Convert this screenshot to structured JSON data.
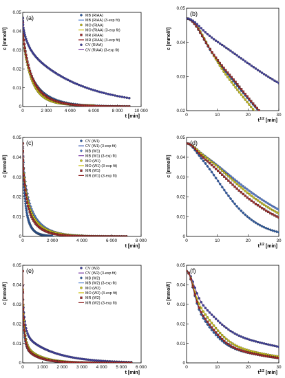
{
  "chart_data": [
    {
      "id": "a",
      "type": "scatter",
      "panel_label": "(a)",
      "xlabel": "t [min]",
      "ylabel": "c [mmol/l]",
      "xlim": [
        0,
        10000
      ],
      "ylim": [
        0,
        0.05
      ],
      "xticks": [
        0,
        2000,
        4000,
        6000,
        8000,
        10000
      ],
      "xtick_labels": [
        "0",
        "2 000",
        "4 000",
        "6 000",
        "8 000",
        "10 000"
      ],
      "yticks": [
        0,
        0.01,
        0.02,
        0.03,
        0.04,
        0.05
      ],
      "ytick_labels": [
        "0",
        "0.01",
        "0.02",
        "0.03",
        "0.04",
        "0.05"
      ],
      "legend_position": "top-right",
      "series": [
        {
          "name": "MB (RIAA)",
          "fit_name": "MB (RIAA) (3-exp fit)",
          "marker": "diamond",
          "color": "#2c5aa0",
          "fit_color": "#4f7fd0",
          "x_max": 9000,
          "c0": 0.047,
          "amps": [
            0.008,
            0.016,
            0.023
          ],
          "taus": [
            40,
            400,
            1500
          ]
        },
        {
          "name": "MO (RIAA)",
          "fit_name": "MO (RIAA) (3-exp fit)",
          "marker": "circle",
          "color": "#c9c21a",
          "fit_color": "#c8bb00",
          "x_max": 6000,
          "c0": 0.047,
          "amps": [
            0.01,
            0.022,
            0.0145
          ],
          "taus": [
            60,
            600,
            1200
          ]
        },
        {
          "name": "MR (RIAA)",
          "fit_name": "MR (RIAA) (3-exp fit)",
          "marker": "square",
          "color": "#a52a2a",
          "fit_color": "#8b1a1a",
          "x_max": 9000,
          "c0": 0.047,
          "amps": [
            0.008,
            0.018,
            0.021
          ],
          "taus": [
            40,
            500,
            1400
          ]
        },
        {
          "name": "CV (RIAA)",
          "fit_name": "CV (RIAA) (3-exp fit)",
          "marker": "circle",
          "color": "#3f3f9f",
          "fit_color": "#7030a0",
          "x_max": 9000,
          "c0": 0.047,
          "amps": [
            0.004,
            0.01,
            0.033
          ],
          "taus": [
            30,
            400,
            4500
          ]
        }
      ]
    },
    {
      "id": "b",
      "type": "scatter",
      "panel_label": "(b)",
      "xlabel": "t^1/2 [min]",
      "ylabel": "c [mmol/l]",
      "xlim": [
        0,
        30
      ],
      "ylim": [
        0.02,
        0.05
      ],
      "xticks": [
        0,
        10,
        20,
        30
      ],
      "xtick_labels": [
        "0",
        "10",
        "20",
        "30"
      ],
      "yticks": [
        0.02,
        0.03,
        0.04,
        0.05
      ],
      "ytick_labels": [
        "0.02",
        "0.03",
        "0.04",
        "0.05"
      ],
      "series": [
        {
          "name": "MB (RIAA)",
          "marker": "diamond",
          "color": "#2c5aa0",
          "fit_color": "#4f7fd0",
          "x_max": 28,
          "c0": 0.047,
          "amps": [
            0.008,
            0.016,
            0.023
          ],
          "taus": [
            40,
            400,
            1500
          ]
        },
        {
          "name": "MO (RIAA)",
          "marker": "circle",
          "color": "#c9c21a",
          "fit_color": "#c8bb00",
          "x_max": 28,
          "c0": 0.047,
          "amps": [
            0.01,
            0.022,
            0.0145
          ],
          "taus": [
            60,
            600,
            1200
          ]
        },
        {
          "name": "MR (RIAA)",
          "marker": "square",
          "color": "#a52a2a",
          "fit_color": "#8b1a1a",
          "x_max": 28,
          "c0": 0.047,
          "amps": [
            0.008,
            0.018,
            0.021
          ],
          "taus": [
            40,
            500,
            1400
          ]
        },
        {
          "name": "CV (RIAA)",
          "marker": "circle",
          "color": "#3f3f9f",
          "fit_color": "#7030a0",
          "x_max": 30,
          "c0": 0.047,
          "amps": [
            0.004,
            0.01,
            0.033
          ],
          "taus": [
            30,
            400,
            4500
          ]
        }
      ]
    },
    {
      "id": "c",
      "type": "scatter",
      "panel_label": "(c)",
      "xlabel": "t [min]",
      "ylabel": "c [mmol/l]",
      "xlim": [
        0,
        8000
      ],
      "ylim": [
        0,
        0.05
      ],
      "xticks": [
        0,
        2000,
        4000,
        6000,
        8000
      ],
      "xtick_labels": [
        "0",
        "2 000",
        "4 000",
        "6 000",
        "8 000"
      ],
      "yticks": [
        0,
        0.01,
        0.02,
        0.03,
        0.04,
        0.05
      ],
      "ytick_labels": [
        "0",
        "0.01",
        "0.02",
        "0.03",
        "0.04",
        "0.05"
      ],
      "legend_position": "top-right",
      "series": [
        {
          "name": "CV (W1)",
          "fit_name": "CV (W1) (3-exp fit)",
          "marker": "diamond",
          "color": "#2c5aa0",
          "fit_color": "#3050b0",
          "x_max": 2000,
          "c0": 0.047,
          "amps": [
            0.01,
            0.02,
            0.017
          ],
          "taus": [
            15,
            150,
            420
          ]
        },
        {
          "name": "MB (W1)",
          "fit_name": "MB (W1) (3-exp fit)",
          "marker": "diamond",
          "color": "#4f7fd0",
          "fit_color": "#7030a0",
          "x_max": 7000,
          "c0": 0.047,
          "amps": [
            0.007,
            0.016,
            0.024
          ],
          "taus": [
            25,
            250,
            900
          ]
        },
        {
          "name": "MO (W1)",
          "fit_name": "MO (W1) (3-exp fit)",
          "marker": "circle",
          "color": "#c9c21a",
          "fit_color": "#c8bb00",
          "x_max": 7000,
          "c0": 0.047,
          "amps": [
            0.01,
            0.02,
            0.017
          ],
          "taus": [
            20,
            300,
            1000
          ]
        },
        {
          "name": "MR (W1)",
          "fit_name": "MR (W1) (3-exp fit)",
          "marker": "square",
          "color": "#a52a2a",
          "fit_color": "#8b1a1a",
          "x_max": 7000,
          "c0": 0.047,
          "amps": [
            0.009,
            0.02,
            0.018
          ],
          "taus": [
            20,
            220,
            800
          ]
        }
      ]
    },
    {
      "id": "d",
      "type": "scatter",
      "panel_label": "(d)",
      "xlabel": "t^1/2 [min]",
      "ylabel": "c [mmol/l]",
      "xlim": [
        0,
        30
      ],
      "ylim": [
        0,
        0.05
      ],
      "xticks": [
        0,
        10,
        20,
        30
      ],
      "xtick_labels": [
        "0",
        "10",
        "20",
        "30"
      ],
      "yticks": [
        0,
        0.01,
        0.02,
        0.03,
        0.04,
        0.05
      ],
      "ytick_labels": [
        "0",
        "0.01",
        "0.02",
        "0.03",
        "0.04",
        "0.05"
      ],
      "series": [
        {
          "name": "CV (W1)",
          "marker": "diamond",
          "color": "#2c5aa0",
          "fit_color": "#3050b0",
          "x_max": 30,
          "c0": 0.047,
          "amps": [
            0.004,
            0.016,
            0.027
          ],
          "taus": [
            10,
            150,
            350
          ]
        },
        {
          "name": "MB (W1)",
          "marker": "diamond",
          "color": "#4f7fd0",
          "fit_color": "#7030a0",
          "x_max": 30,
          "c0": 0.047,
          "amps": [
            0.004,
            0.01,
            0.033
          ],
          "taus": [
            15,
            200,
            1000
          ]
        },
        {
          "name": "MO (W1)",
          "marker": "circle",
          "color": "#c9c21a",
          "fit_color": "#c8bb00",
          "x_max": 30,
          "c0": 0.047,
          "amps": [
            0.004,
            0.012,
            0.031
          ],
          "taus": [
            15,
            220,
            900
          ]
        },
        {
          "name": "MR (W1)",
          "marker": "square",
          "color": "#a52a2a",
          "fit_color": "#8b1a1a",
          "x_max": 30,
          "c0": 0.047,
          "amps": [
            0.005,
            0.013,
            0.029
          ],
          "taus": [
            15,
            200,
            800
          ]
        }
      ]
    },
    {
      "id": "e",
      "type": "scatter",
      "panel_label": "(e)",
      "xlabel": "t [min]",
      "ylabel": "c [mmol/l]",
      "xlim": [
        0,
        6000
      ],
      "ylim": [
        0,
        0.05
      ],
      "xticks": [
        0,
        1000,
        2000,
        3000,
        4000,
        5000,
        6000
      ],
      "xtick_labels": [
        "0",
        "1 000",
        "2 000",
        "3 000",
        "4 000",
        "5 000",
        "6 000"
      ],
      "yticks": [
        0,
        0.01,
        0.02,
        0.03,
        0.04,
        0.05
      ],
      "ytick_labels": [
        "0",
        "0.01",
        "0.02",
        "0.03",
        "0.04",
        "0.05"
      ],
      "legend_position": "top-right",
      "series": [
        {
          "name": "CV (W2)",
          "fit_name": "CV (W2) (3-exp fit)",
          "marker": "circle",
          "color": "#3f3f9f",
          "fit_color": "#7030a0",
          "x_max": 5500,
          "c0": 0.047,
          "amps": [
            0.014,
            0.018,
            0.015
          ],
          "taus": [
            10,
            120,
            1500
          ]
        },
        {
          "name": "MB (W2)",
          "fit_name": "MB (W2) (3-exp fit)",
          "marker": "diamond",
          "color": "#2c5aa0",
          "fit_color": "#4f7fd0",
          "x_max": 5500,
          "c0": 0.047,
          "amps": [
            0.018,
            0.02,
            0.009
          ],
          "taus": [
            8,
            80,
            700
          ]
        },
        {
          "name": "MO (W2)",
          "fit_name": "MO (W2) (3-exp fit)",
          "marker": "circle",
          "color": "#c9c21a",
          "fit_color": "#c8bb00",
          "x_max": 5500,
          "c0": 0.047,
          "amps": [
            0.015,
            0.022,
            0.01
          ],
          "taus": [
            8,
            100,
            800
          ]
        },
        {
          "name": "MR (W2)",
          "fit_name": "MR (W2) (3-exp fit)",
          "marker": "square",
          "color": "#a52a2a",
          "fit_color": "#8b1a1a",
          "x_max": 5500,
          "c0": 0.047,
          "amps": [
            0.017,
            0.021,
            0.009
          ],
          "taus": [
            8,
            90,
            700
          ]
        }
      ]
    },
    {
      "id": "f",
      "type": "scatter",
      "panel_label": "(f)",
      "xlabel": "t^1/2 [min]",
      "ylabel": "c [mmol/l]",
      "xlim": [
        0,
        30
      ],
      "ylim": [
        0,
        0.05
      ],
      "xticks": [
        0,
        10,
        20,
        30
      ],
      "xtick_labels": [
        "0",
        "10",
        "20",
        "30"
      ],
      "yticks": [
        0,
        0.01,
        0.02,
        0.03,
        0.04,
        0.05
      ],
      "ytick_labels": [
        "0",
        "0.01",
        "0.02",
        "0.03",
        "0.04",
        "0.05"
      ],
      "series": [
        {
          "name": "CV (W2)",
          "marker": "circle",
          "color": "#3f3f9f",
          "fit_color": "#7030a0",
          "x_max": 30,
          "c0": 0.047,
          "amps": [
            0.014,
            0.018,
            0.015
          ],
          "taus": [
            10,
            120,
            1500
          ]
        },
        {
          "name": "MB (W2)",
          "marker": "diamond",
          "color": "#2c5aa0",
          "fit_color": "#4f7fd0",
          "x_max": 30,
          "c0": 0.047,
          "amps": [
            0.018,
            0.02,
            0.009
          ],
          "taus": [
            8,
            80,
            700
          ]
        },
        {
          "name": "MO (W2)",
          "marker": "circle",
          "color": "#c9c21a",
          "fit_color": "#c8bb00",
          "x_max": 30,
          "c0": 0.047,
          "amps": [
            0.015,
            0.022,
            0.01
          ],
          "taus": [
            8,
            100,
            800
          ]
        },
        {
          "name": "MR (W2)",
          "marker": "square",
          "color": "#a52a2a",
          "fit_color": "#8b1a1a",
          "x_max": 30,
          "c0": 0.047,
          "amps": [
            0.017,
            0.021,
            0.009
          ],
          "taus": [
            8,
            90,
            700
          ]
        }
      ]
    }
  ]
}
